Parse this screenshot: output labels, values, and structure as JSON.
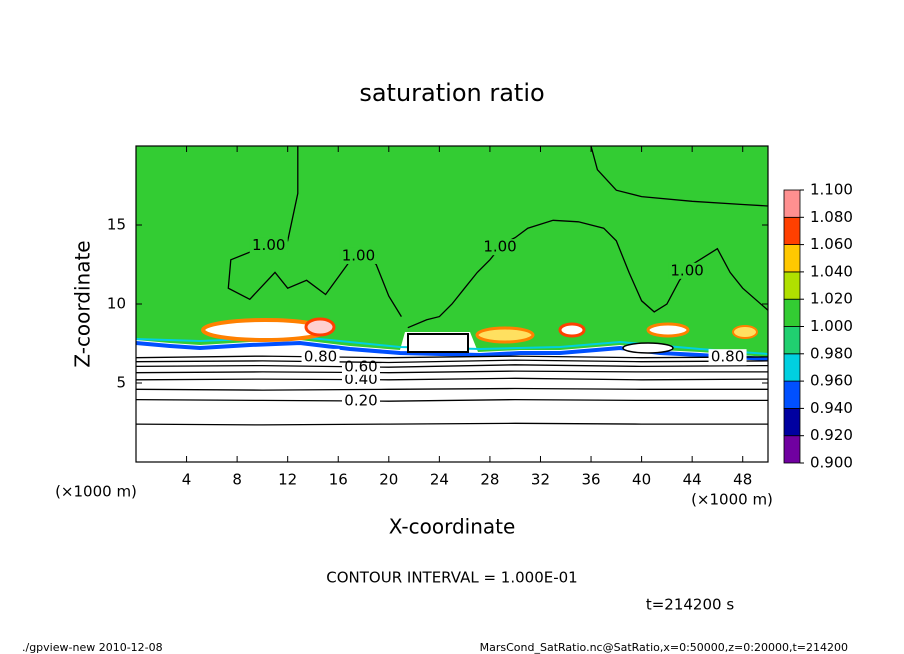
{
  "chart_data": {
    "type": "contour",
    "title": "saturation ratio",
    "xlabel": "X-coordinate",
    "ylabel": "Z-coordinate",
    "x_unit": "(×1000 m)",
    "xlim": [
      0,
      50
    ],
    "ylim": [
      0,
      20
    ],
    "xticks": [
      4,
      8,
      12,
      16,
      20,
      24,
      28,
      32,
      36,
      40,
      44,
      48
    ],
    "yticks": [
      5,
      10,
      15
    ],
    "contour_interval": "CONTOUR INTERVAL = 1.000E-01",
    "time_label": "t=214200 s",
    "footer_left": "./gpview-new  2010-12-08",
    "footer_right": "MarsCond_SatRatio.nc@SatRatio,x=0:50000,z=0:20000,t=214200",
    "colorbar": {
      "levels": [
        {
          "value": 0.9,
          "label": "0.900"
        },
        {
          "value": 0.92,
          "label": "0.920"
        },
        {
          "value": 0.94,
          "label": "0.940"
        },
        {
          "value": 0.96,
          "label": "0.960"
        },
        {
          "value": 0.98,
          "label": "0.980"
        },
        {
          "value": 1.0,
          "label": "1.000"
        },
        {
          "value": 1.02,
          "label": "1.020"
        },
        {
          "value": 1.04,
          "label": "1.040"
        },
        {
          "value": 1.06,
          "label": "1.060"
        },
        {
          "value": 1.08,
          "label": "1.080"
        },
        {
          "value": 1.1,
          "label": "1.100"
        }
      ],
      "colors": [
        "#7000a0",
        "#0000a0",
        "#0050ff",
        "#00d0e0",
        "#20d070",
        "#33cc33",
        "#b0e000",
        "#ffc800",
        "#ff4000",
        "#ff9090"
      ]
    },
    "contours": [
      {
        "level": 0.1,
        "x": [
          0,
          10,
          20,
          30,
          40,
          50
        ],
        "y": [
          2.4,
          2.35,
          2.4,
          2.45,
          2.4,
          2.4
        ]
      },
      {
        "level": 0.2,
        "label": "0.20",
        "x": [
          0,
          10,
          20,
          30,
          40,
          50
        ],
        "y": [
          3.95,
          3.9,
          3.85,
          3.95,
          3.9,
          3.9
        ]
      },
      {
        "level": 0.3,
        "x": [
          0,
          10,
          20,
          30,
          40,
          50
        ],
        "y": [
          4.6,
          4.55,
          4.6,
          4.65,
          4.6,
          4.6
        ]
      },
      {
        "level": 0.4,
        "label": "0.40",
        "x": [
          0,
          10,
          20,
          30,
          40,
          50
        ],
        "y": [
          5.2,
          5.25,
          5.2,
          5.3,
          5.2,
          5.25
        ]
      },
      {
        "level": 0.5,
        "x": [
          0,
          10,
          20,
          30,
          40,
          50
        ],
        "y": [
          5.65,
          5.7,
          5.65,
          5.75,
          5.7,
          5.7
        ]
      },
      {
        "level": 0.6,
        "label": "0.60",
        "x": [
          0,
          10,
          20,
          30,
          40,
          50
        ],
        "y": [
          6.05,
          6.1,
          6.0,
          6.15,
          6.05,
          6.1
        ]
      },
      {
        "level": 0.7,
        "x": [
          0,
          10,
          20,
          30,
          40,
          50
        ],
        "y": [
          6.35,
          6.4,
          6.3,
          6.45,
          6.35,
          6.4
        ]
      },
      {
        "level": 0.8,
        "label": "0.80",
        "x": [
          0,
          10,
          20,
          30,
          40,
          50
        ],
        "y": [
          6.6,
          6.7,
          6.6,
          6.7,
          6.6,
          6.65
        ]
      },
      {
        "level": 1.0,
        "label": "1.00",
        "x": [
          12.8,
          12.8,
          12,
          10,
          7.5,
          7.3,
          9,
          11,
          12,
          13.5,
          15,
          17,
          18,
          19,
          20,
          21,
          null,
          21.5,
          23,
          24,
          25,
          26,
          27,
          28,
          29,
          30,
          31,
          33,
          35,
          37,
          38,
          39,
          40,
          41,
          42,
          43,
          44,
          46,
          47,
          48,
          50,
          null,
          36,
          36.5,
          38,
          40,
          44,
          48,
          50
        ],
        "y": [
          20,
          17,
          14,
          13.6,
          12.8,
          11,
          10.3,
          12,
          11,
          11.5,
          10.6,
          12.8,
          13.2,
          12.5,
          10.5,
          9.2,
          null,
          8.5,
          9.0,
          9.2,
          10.0,
          11,
          12,
          12.8,
          13.8,
          14.2,
          14.8,
          15.3,
          15.2,
          14.8,
          14,
          12,
          10.2,
          9.5,
          10,
          11.5,
          12.5,
          13.5,
          12.0,
          11,
          9.6,
          null,
          20,
          18.5,
          17.2,
          16.8,
          16.5,
          16.3,
          16.2
        ]
      }
    ]
  }
}
